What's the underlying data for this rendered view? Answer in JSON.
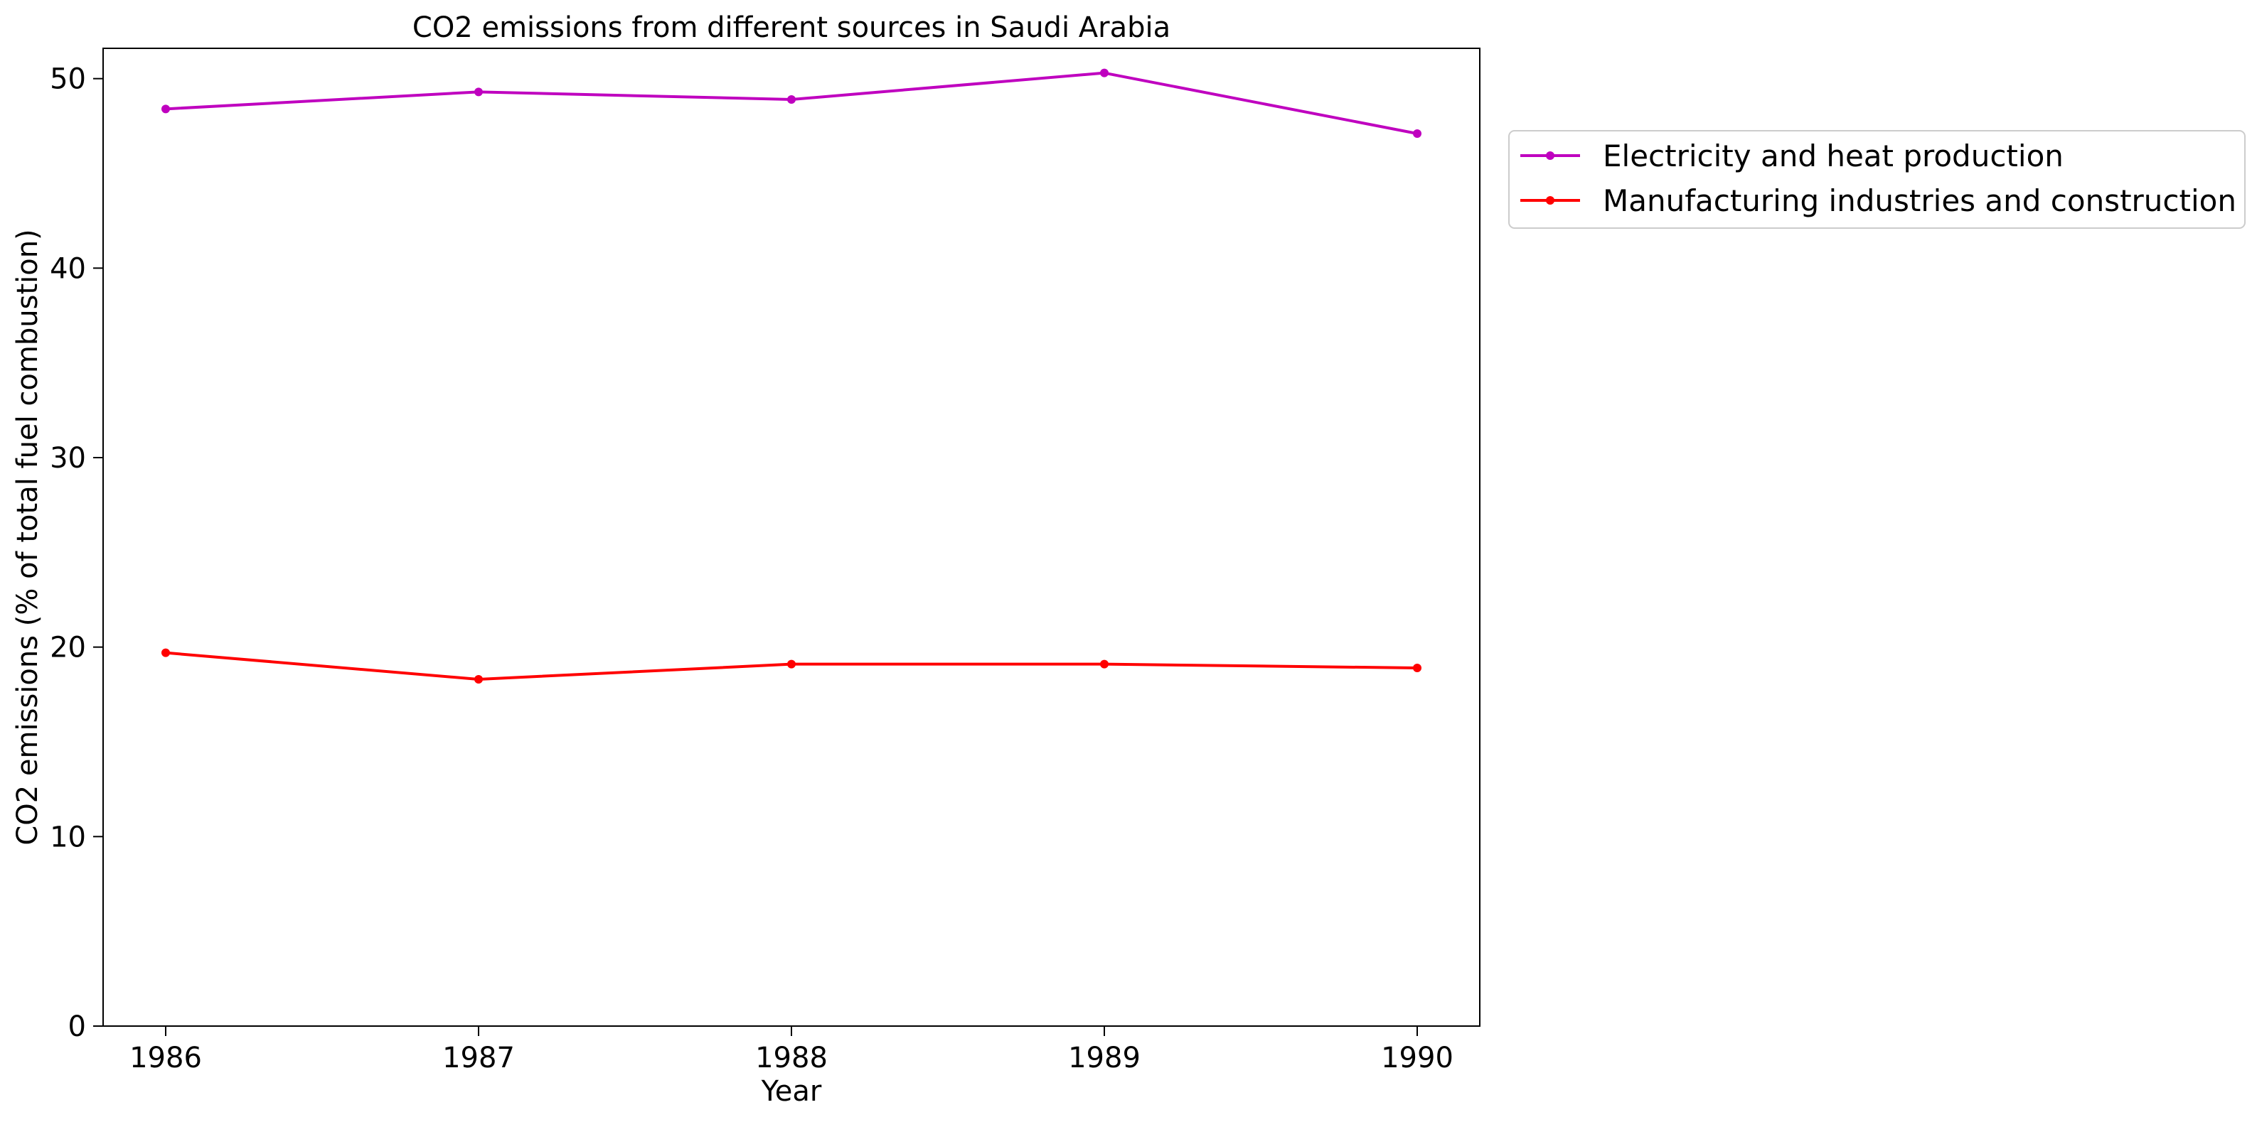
{
  "chart_data": {
    "type": "line",
    "title": "CO2 emissions from different sources in Saudi Arabia",
    "xlabel": "Year",
    "ylabel": "CO2 emissions (% of total fuel combustion)",
    "x": [
      1986,
      1987,
      1988,
      1989,
      1990
    ],
    "x_tick_labels": [
      "1986",
      "1987",
      "1988",
      "1989",
      "1990"
    ],
    "y_ticks": [
      0,
      10,
      20,
      30,
      40,
      50
    ],
    "y_tick_labels": [
      "0",
      "10",
      "20",
      "30",
      "40",
      "50"
    ],
    "ylim": [
      0,
      51.6
    ],
    "grid": false,
    "legend_position": "outside-right-top",
    "series": [
      {
        "name": "Electricity and heat production",
        "color": "#bf00bf",
        "values": [
          48.4,
          49.3,
          48.9,
          50.3,
          47.1
        ]
      },
      {
        "name": "Manufacturing industries and construction",
        "color": "#ff0000",
        "values": [
          19.7,
          18.3,
          19.1,
          19.1,
          18.9
        ]
      }
    ]
  }
}
